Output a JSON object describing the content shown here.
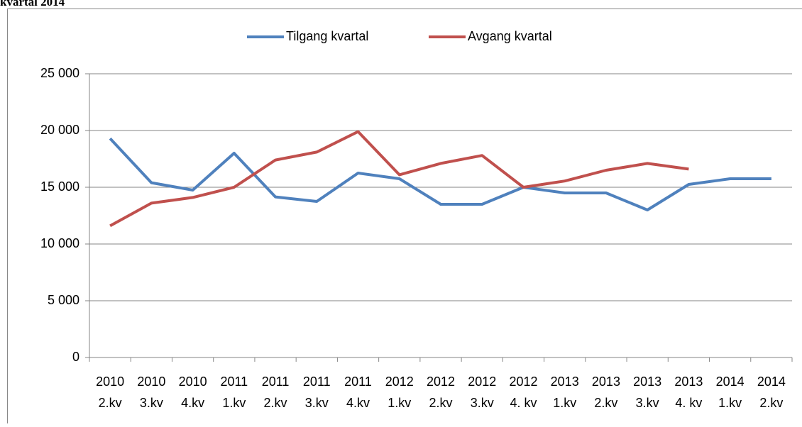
{
  "chart_data": {
    "type": "line",
    "title": "kvartal 2014",
    "categories": [
      [
        "2010",
        "2.kv"
      ],
      [
        "2010",
        "3.kv"
      ],
      [
        "2010",
        "4.kv"
      ],
      [
        "2011",
        "1.kv"
      ],
      [
        "2011",
        "2.kv"
      ],
      [
        "2011",
        "3.kv"
      ],
      [
        "2011",
        "4.kv"
      ],
      [
        "2012",
        "1.kv"
      ],
      [
        "2012",
        "2.kv"
      ],
      [
        "2012",
        "3.kv"
      ],
      [
        "2012",
        "4. kv"
      ],
      [
        "2013",
        "1.kv"
      ],
      [
        "2013",
        "2.kv"
      ],
      [
        "2013",
        "3.kv"
      ],
      [
        "2013",
        "4. kv"
      ],
      [
        "2014",
        "1.kv"
      ],
      [
        "2014",
        "2.kv"
      ]
    ],
    "series": [
      {
        "name": "Tilgang kvartal",
        "color": "#4f81bd",
        "values": [
          19300,
          15400,
          14750,
          18000,
          14150,
          13750,
          16250,
          15750,
          13500,
          13500,
          15000,
          14500,
          14500,
          13000,
          15250,
          15750,
          15750
        ]
      },
      {
        "name": "Avgang kvartal",
        "color": "#c0504d",
        "values": [
          11600,
          13600,
          14100,
          15000,
          17400,
          18100,
          19900,
          16100,
          17100,
          17800,
          15000,
          15550,
          16500,
          17100,
          16600,
          null,
          null
        ]
      }
    ],
    "ylim": [
      0,
      25000
    ],
    "yticks": [
      0,
      {
        "value": 5000,
        "label": "5 000"
      },
      {
        "value": 10000,
        "label": "10 000"
      },
      {
        "value": 15000,
        "label": "15 000"
      },
      {
        "value": 20000,
        "label": "20 000"
      },
      {
        "value": 25000,
        "label": "25 000"
      }
    ],
    "grid": true,
    "legend": "top"
  }
}
